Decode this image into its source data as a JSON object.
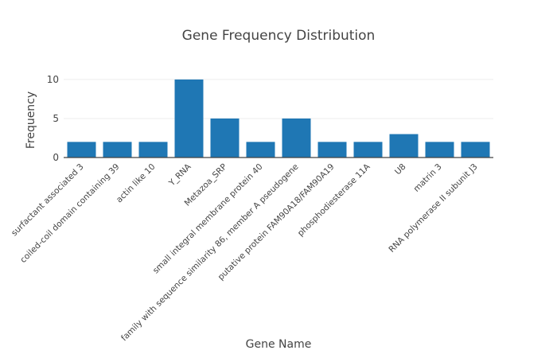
{
  "chart_data": {
    "type": "bar",
    "title": "Gene Frequency Distribution",
    "xlabel": "Gene Name",
    "ylabel": "Frequency",
    "categories": [
      "surfactant associated 3",
      "coiled-coil domain containing 39",
      "actin like 10",
      "Y_RNA",
      "Metazoa_SRP",
      "small integral membrane protein 40",
      "family with sequence similarity 86, member A pseudogene",
      "putative protein FAM90A18/FAM90A19",
      "phosphodiesterase 11A",
      "U8",
      "matrin 3",
      "RNA polymerase II subunit J3"
    ],
    "values": [
      2,
      2,
      2,
      10,
      5,
      2,
      5,
      2,
      2,
      3,
      2,
      2
    ],
    "ylim": [
      0,
      10.5
    ],
    "yticks": [
      0,
      5,
      10
    ],
    "grid": true,
    "bar_color": "#1f77b4"
  }
}
